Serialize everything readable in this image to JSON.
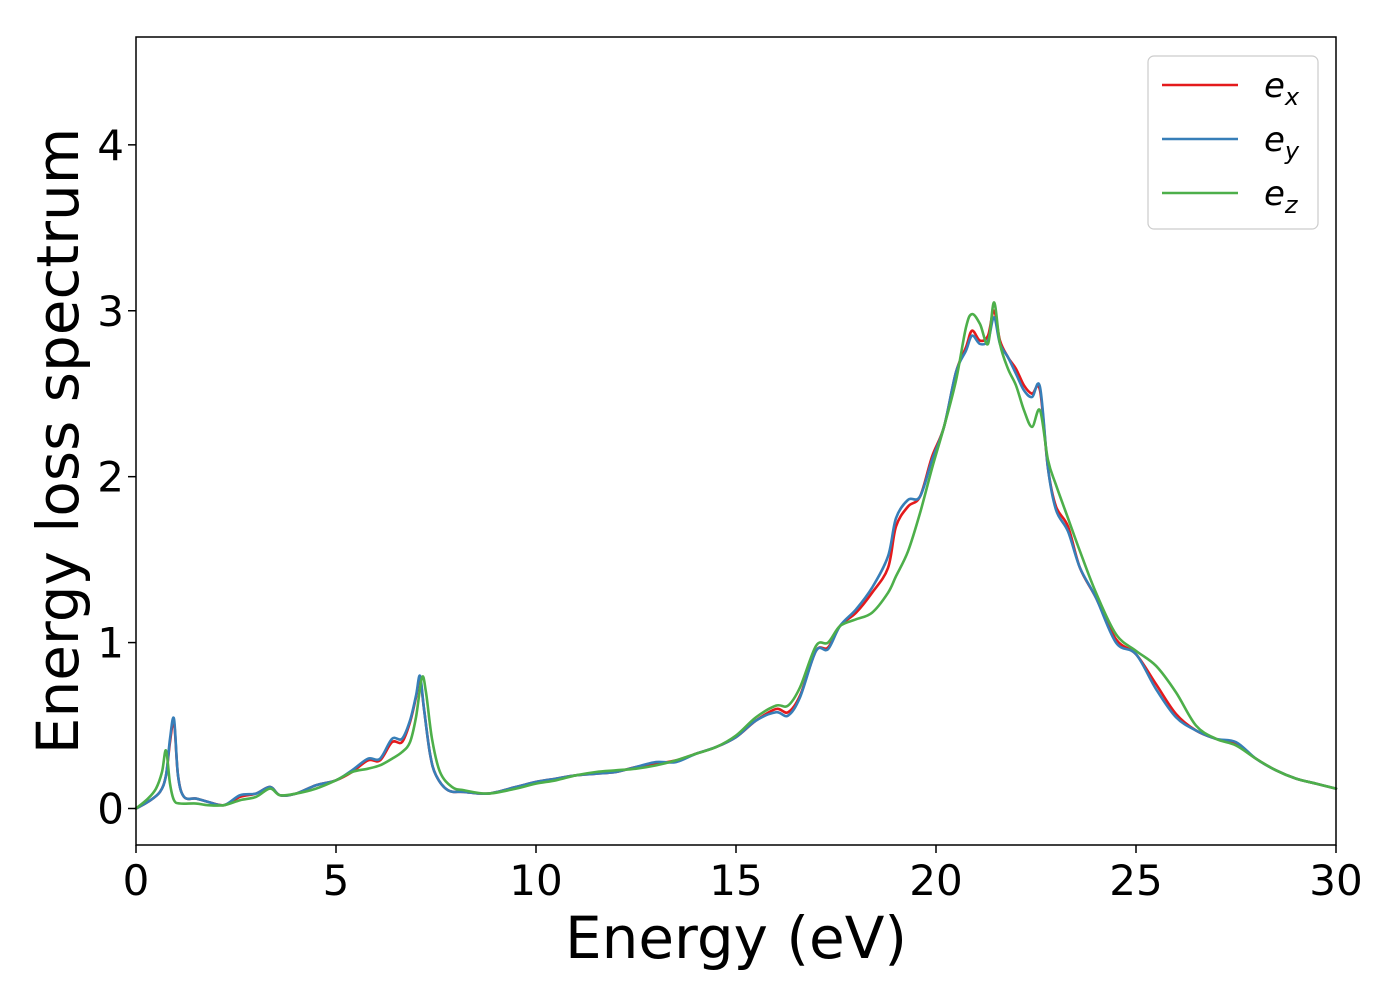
{
  "chart_data": {
    "type": "line",
    "title": "",
    "xlabel": "Energy (eV)",
    "ylabel": "Energy loss spectrum",
    "xlim": [
      0,
      30
    ],
    "ylim": [
      -0.22,
      4.65
    ],
    "xticks": [
      0,
      5,
      10,
      15,
      20,
      25,
      30
    ],
    "yticks": [
      0,
      1,
      2,
      3,
      4
    ],
    "grid": false,
    "legend": {
      "position": "top-right",
      "entries": [
        {
          "base": "e",
          "sub": "x",
          "color": "#e41a1c"
        },
        {
          "base": "e",
          "sub": "y",
          "color": "#377eb8"
        },
        {
          "base": "e",
          "sub": "z",
          "color": "#4daf4a"
        }
      ]
    },
    "series": [
      {
        "name": "e_x",
        "color": "#e41a1c",
        "x": [
          0,
          0.3,
          0.6,
          0.75,
          0.85,
          0.95,
          1.05,
          1.2,
          1.5,
          1.8,
          2.2,
          2.6,
          3.0,
          3.35,
          3.6,
          4.0,
          4.5,
          5.0,
          5.4,
          5.8,
          6.1,
          6.4,
          6.65,
          6.85,
          7.0,
          7.1,
          7.2,
          7.35,
          7.5,
          7.8,
          8.2,
          8.8,
          9.5,
          10.0,
          10.5,
          11.0,
          11.5,
          12.0,
          12.5,
          13.0,
          13.5,
          14.0,
          14.5,
          15.0,
          15.5,
          16.0,
          16.3,
          16.6,
          17.0,
          17.3,
          17.6,
          18.0,
          18.4,
          18.8,
          19.0,
          19.3,
          19.6,
          19.9,
          20.2,
          20.5,
          20.75,
          20.9,
          21.1,
          21.3,
          21.45,
          21.6,
          21.8,
          22.0,
          22.2,
          22.4,
          22.6,
          22.8,
          23.0,
          23.3,
          23.6,
          24.0,
          24.5,
          25.0,
          25.5,
          26.0,
          26.5,
          27.0,
          27.5,
          28.0,
          28.5,
          29.0,
          29.5,
          30.0
        ],
        "values": [
          0,
          0.04,
          0.1,
          0.2,
          0.4,
          0.52,
          0.2,
          0.07,
          0.06,
          0.04,
          0.02,
          0.07,
          0.09,
          0.13,
          0.08,
          0.09,
          0.14,
          0.17,
          0.22,
          0.29,
          0.29,
          0.4,
          0.4,
          0.52,
          0.67,
          0.78,
          0.6,
          0.33,
          0.2,
          0.11,
          0.1,
          0.09,
          0.13,
          0.16,
          0.18,
          0.2,
          0.21,
          0.22,
          0.25,
          0.27,
          0.29,
          0.33,
          0.37,
          0.43,
          0.53,
          0.6,
          0.58,
          0.68,
          0.95,
          0.97,
          1.1,
          1.18,
          1.3,
          1.45,
          1.7,
          1.82,
          1.88,
          2.12,
          2.3,
          2.63,
          2.78,
          2.88,
          2.82,
          2.85,
          3.0,
          2.82,
          2.72,
          2.65,
          2.55,
          2.5,
          2.52,
          2.05,
          1.82,
          1.7,
          1.45,
          1.27,
          1.02,
          0.93,
          0.75,
          0.57,
          0.47,
          0.42,
          0.39,
          0.3,
          0.23,
          0.18,
          0.15,
          0.12
        ]
      },
      {
        "name": "e_y",
        "color": "#377eb8",
        "x": [
          0,
          0.3,
          0.6,
          0.75,
          0.85,
          0.95,
          1.05,
          1.2,
          1.5,
          1.8,
          2.2,
          2.6,
          3.0,
          3.35,
          3.6,
          4.0,
          4.5,
          5.0,
          5.4,
          5.8,
          6.1,
          6.4,
          6.65,
          6.85,
          7.0,
          7.1,
          7.2,
          7.35,
          7.5,
          7.8,
          8.2,
          8.8,
          9.5,
          10.0,
          10.5,
          11.0,
          11.5,
          12.0,
          12.5,
          13.0,
          13.5,
          14.0,
          14.5,
          15.0,
          15.5,
          16.0,
          16.3,
          16.6,
          17.0,
          17.3,
          17.6,
          18.0,
          18.4,
          18.8,
          19.0,
          19.3,
          19.6,
          19.9,
          20.2,
          20.5,
          20.75,
          20.9,
          21.1,
          21.3,
          21.45,
          21.6,
          21.8,
          22.0,
          22.2,
          22.4,
          22.6,
          22.8,
          23.0,
          23.3,
          23.6,
          24.0,
          24.5,
          25.0,
          25.5,
          26.0,
          26.5,
          27.0,
          27.5,
          28.0,
          28.5,
          29.0,
          29.5,
          30.0
        ],
        "values": [
          0,
          0.04,
          0.1,
          0.2,
          0.42,
          0.54,
          0.2,
          0.07,
          0.06,
          0.04,
          0.02,
          0.08,
          0.09,
          0.13,
          0.08,
          0.09,
          0.14,
          0.17,
          0.23,
          0.3,
          0.3,
          0.42,
          0.42,
          0.53,
          0.68,
          0.8,
          0.6,
          0.33,
          0.2,
          0.11,
          0.1,
          0.09,
          0.13,
          0.16,
          0.18,
          0.2,
          0.21,
          0.22,
          0.25,
          0.28,
          0.28,
          0.33,
          0.37,
          0.43,
          0.53,
          0.58,
          0.56,
          0.67,
          0.95,
          0.96,
          1.1,
          1.2,
          1.33,
          1.52,
          1.75,
          1.86,
          1.88,
          2.1,
          2.3,
          2.63,
          2.76,
          2.85,
          2.8,
          2.82,
          2.96,
          2.8,
          2.72,
          2.62,
          2.52,
          2.48,
          2.54,
          2.05,
          1.8,
          1.67,
          1.45,
          1.27,
          1.0,
          0.93,
          0.72,
          0.55,
          0.47,
          0.42,
          0.4,
          0.3,
          0.23,
          0.18,
          0.15,
          0.12
        ]
      },
      {
        "name": "e_z",
        "color": "#4daf4a",
        "x": [
          0,
          0.3,
          0.5,
          0.65,
          0.75,
          0.85,
          0.95,
          1.1,
          1.5,
          1.8,
          2.2,
          2.6,
          3.0,
          3.35,
          3.6,
          4.0,
          4.5,
          5.0,
          5.4,
          5.8,
          6.1,
          6.4,
          6.65,
          6.85,
          7.0,
          7.15,
          7.25,
          7.4,
          7.6,
          7.9,
          8.2,
          8.8,
          9.5,
          10.0,
          10.5,
          11.0,
          11.5,
          12.0,
          12.5,
          13.0,
          13.5,
          14.0,
          14.5,
          15.0,
          15.5,
          16.0,
          16.3,
          16.6,
          17.0,
          17.3,
          17.6,
          18.0,
          18.4,
          18.8,
          19.0,
          19.3,
          19.6,
          19.9,
          20.2,
          20.5,
          20.75,
          20.9,
          21.1,
          21.3,
          21.45,
          21.6,
          21.8,
          22.0,
          22.2,
          22.4,
          22.6,
          22.8,
          23.0,
          23.3,
          23.6,
          24.0,
          24.5,
          25.0,
          25.5,
          26.0,
          26.5,
          27.0,
          27.5,
          28.0,
          28.5,
          29.0,
          29.5,
          30.0
        ],
        "values": [
          0,
          0.06,
          0.12,
          0.22,
          0.35,
          0.15,
          0.05,
          0.03,
          0.03,
          0.02,
          0.02,
          0.05,
          0.07,
          0.12,
          0.08,
          0.09,
          0.12,
          0.17,
          0.22,
          0.24,
          0.26,
          0.3,
          0.34,
          0.4,
          0.55,
          0.79,
          0.7,
          0.42,
          0.22,
          0.13,
          0.11,
          0.09,
          0.12,
          0.15,
          0.17,
          0.2,
          0.22,
          0.23,
          0.24,
          0.26,
          0.29,
          0.33,
          0.37,
          0.44,
          0.55,
          0.62,
          0.62,
          0.73,
          0.98,
          1.0,
          1.1,
          1.14,
          1.18,
          1.3,
          1.4,
          1.55,
          1.78,
          2.05,
          2.3,
          2.58,
          2.9,
          2.98,
          2.92,
          2.8,
          3.05,
          2.8,
          2.65,
          2.55,
          2.4,
          2.3,
          2.4,
          2.1,
          1.95,
          1.75,
          1.55,
          1.3,
          1.05,
          0.95,
          0.86,
          0.7,
          0.5,
          0.42,
          0.38,
          0.3,
          0.23,
          0.18,
          0.15,
          0.12
        ]
      }
    ]
  }
}
